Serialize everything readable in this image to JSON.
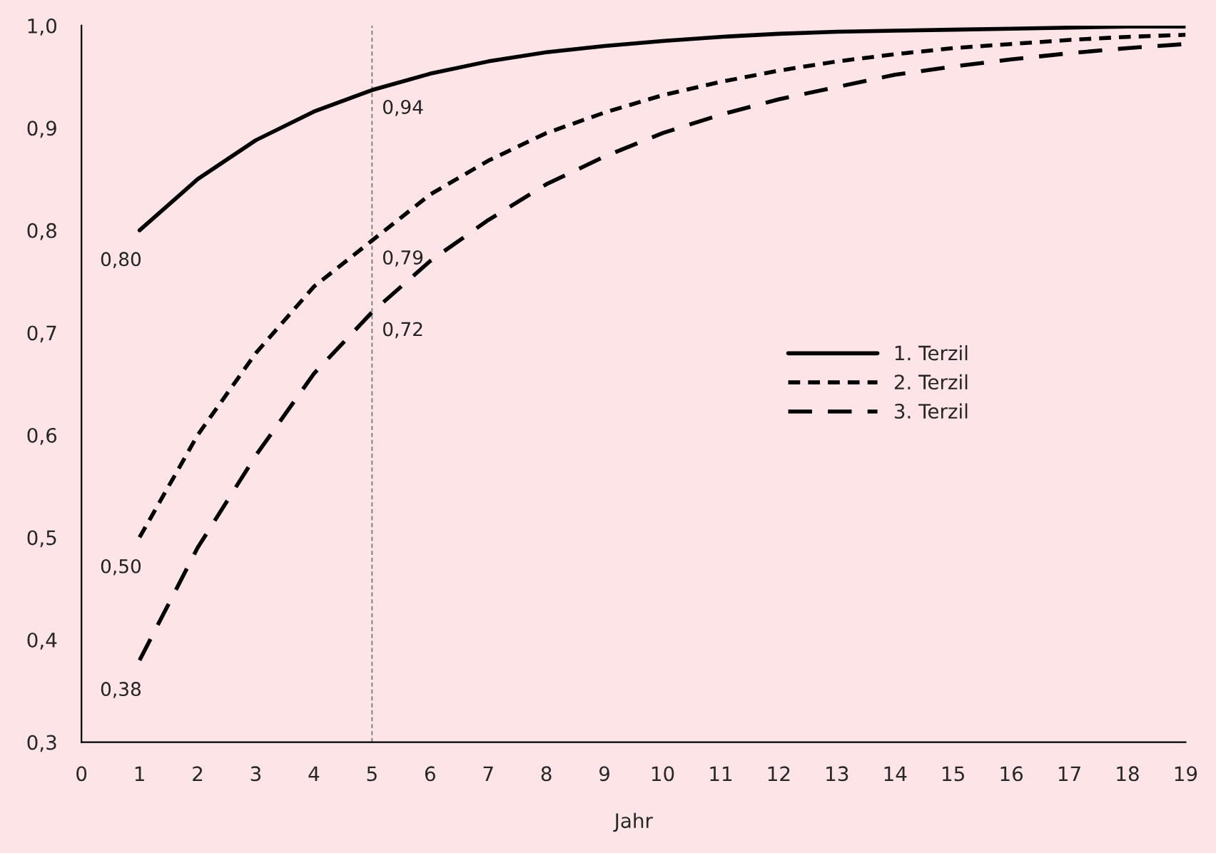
{
  "chart_data": {
    "type": "line",
    "xlabel": "Jahr",
    "x": [
      1,
      2,
      3,
      4,
      5,
      6,
      7,
      8,
      9,
      10,
      11,
      12,
      13,
      14,
      15,
      16,
      17,
      18,
      19
    ],
    "series": [
      {
        "name": "1. Terzil",
        "color": "#000000",
        "line_style": "solid",
        "values": [
          0.8,
          0.85,
          0.888,
          0.916,
          0.937,
          0.953,
          0.965,
          0.974,
          0.98,
          0.985,
          0.989,
          0.992,
          0.994,
          0.995,
          0.996,
          0.997,
          0.998,
          0.999,
          0.999
        ],
        "value_labels": [
          "0,80",
          null,
          null,
          null,
          "0,94",
          null,
          null,
          null,
          null,
          null,
          null,
          null,
          null,
          null,
          null,
          null,
          null,
          null,
          null
        ]
      },
      {
        "name": "2. Terzil",
        "color": "#000000",
        "line_style": "dotted",
        "values": [
          0.5,
          0.6,
          0.68,
          0.745,
          0.79,
          0.835,
          0.868,
          0.895,
          0.915,
          0.932,
          0.945,
          0.956,
          0.965,
          0.972,
          0.978,
          0.982,
          0.986,
          0.989,
          0.991
        ],
        "value_labels": [
          "0,50",
          null,
          null,
          null,
          "0,79",
          null,
          null,
          null,
          null,
          null,
          null,
          null,
          null,
          null,
          null,
          null,
          null,
          null,
          null
        ]
      },
      {
        "name": "3. Terzil",
        "color": "#000000",
        "line_style": "dashed",
        "values": [
          0.38,
          0.49,
          0.58,
          0.66,
          0.72,
          0.77,
          0.81,
          0.845,
          0.872,
          0.895,
          0.913,
          0.928,
          0.94,
          0.952,
          0.96,
          0.967,
          0.973,
          0.978,
          0.982
        ],
        "value_labels": [
          "0,38",
          null,
          null,
          null,
          "0,72",
          null,
          null,
          null,
          null,
          null,
          null,
          null,
          null,
          null,
          null,
          null,
          null,
          null,
          null
        ]
      }
    ],
    "xlim": [
      0,
      19
    ],
    "xticks": [
      0,
      1,
      2,
      3,
      4,
      5,
      6,
      7,
      8,
      9,
      10,
      11,
      12,
      13,
      14,
      15,
      16,
      17,
      18,
      19
    ],
    "ylim": [
      0.3,
      1.0
    ],
    "yticks": [
      {
        "value": 0.3,
        "label": "0,3"
      },
      {
        "value": 0.4,
        "label": "0,4"
      },
      {
        "value": 0.5,
        "label": "0,5"
      },
      {
        "value": 0.6,
        "label": "0,6"
      },
      {
        "value": 0.7,
        "label": "0,7"
      },
      {
        "value": 0.8,
        "label": "0,8"
      },
      {
        "value": 0.9,
        "label": "0,9"
      },
      {
        "value": 1.0,
        "label": "1,0"
      }
    ],
    "ref_lines": [
      {
        "axis": "x",
        "value": 5,
        "label": null,
        "color": "#808080",
        "line_style": "dotted"
      }
    ],
    "grid": false,
    "legend": "center right",
    "marker": "none"
  }
}
